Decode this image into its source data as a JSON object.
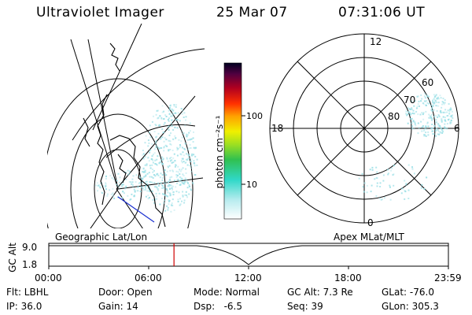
{
  "header": {
    "instrument": "Ultraviolet Imager",
    "date": "25 Mar 07",
    "time": "07:31:06 UT"
  },
  "colorbar": {
    "unit_label": "photon cm⁻²s⁻¹",
    "ticks": [
      "100",
      "10"
    ]
  },
  "polar_map": {
    "mlt_labels": {
      "top": "12",
      "left": "18",
      "right": "6",
      "bottom": "0"
    },
    "lat_labels": [
      "60",
      "70",
      "80"
    ]
  },
  "timeline": {
    "left_title": "Geographic Lat/Lon",
    "right_title": "Apex MLat/MLT",
    "y_title": "GC Alt",
    "y_ticks": [
      "9.0",
      "1.8"
    ],
    "x_ticks": [
      "00:00",
      "06:00",
      "12:00",
      "18:00",
      "23:59"
    ],
    "current_time_hours": 7.52
  },
  "status": {
    "row1": [
      "Flt: LBHL",
      "Door: Open",
      "Mode: Normal",
      "GC Alt: 7.3 Re",
      "GLat: -76.0"
    ],
    "row2": [
      "IP: 36.0",
      "Gain: 14",
      "Dsp:   -6.5",
      "Seq: 39",
      "GLon: 305.3"
    ]
  },
  "colors": {
    "aurora": "#9adfe6",
    "marker": "#d00000",
    "coast": "#000000",
    "track": "#1a2fd0"
  }
}
